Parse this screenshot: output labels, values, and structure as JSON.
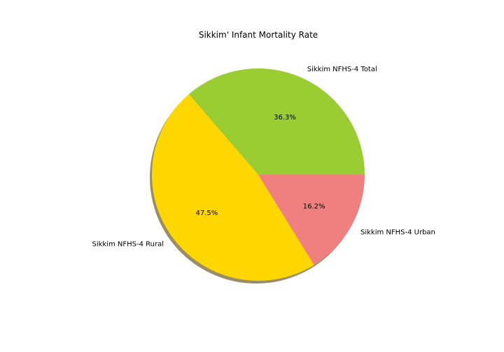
{
  "chart_data": {
    "type": "pie",
    "title": "Sikkim' Infant Mortality Rate",
    "slices": [
      {
        "label": "Sikkim NFHS-4 Total",
        "value": 36.3,
        "pct_text": "36.3%",
        "color": "#9acd32"
      },
      {
        "label": "Sikkim NFHS-4 Rural",
        "value": 47.5,
        "pct_text": "47.5%",
        "color": "#ffd700"
      },
      {
        "label": "Sikkim NFHS-4 Urban",
        "value": 16.2,
        "pct_text": "16.2%",
        "color": "#f08080"
      }
    ],
    "start_angle_deg": 0,
    "direction": "counterclockwise",
    "shadow": true,
    "legend": "none"
  }
}
